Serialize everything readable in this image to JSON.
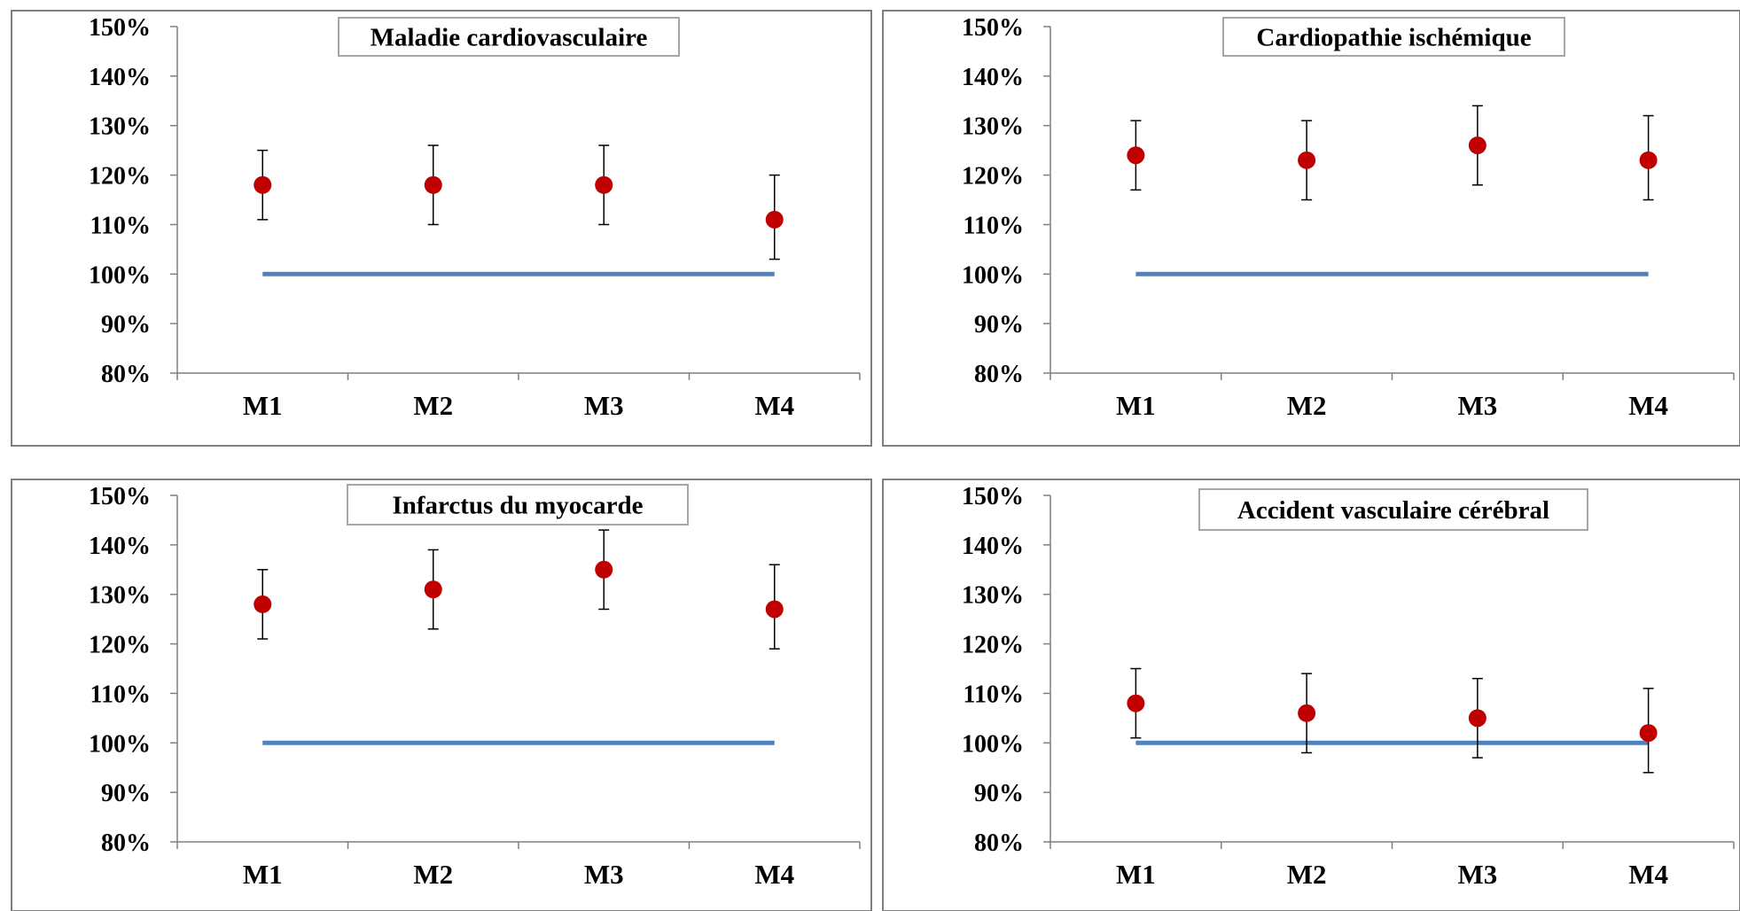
{
  "colors": {
    "point": "#c00000",
    "reference_line": "#4f81bd",
    "axis": "#7f7f7f",
    "frame": "#7f7f7f",
    "title_border": "#a6a6a6"
  },
  "chart_data": [
    {
      "type": "scatter",
      "title": "Maladie cardiovasculaire",
      "categories": [
        "M1",
        "M2",
        "M3",
        "M4"
      ],
      "values": [
        118,
        118,
        118,
        111
      ],
      "ci_low": [
        111,
        110,
        110,
        103
      ],
      "ci_high": [
        125,
        126,
        126,
        120
      ],
      "reference": 100,
      "ylim": [
        80,
        150
      ],
      "yticks": [
        "80%",
        "90%",
        "100%",
        "110%",
        "120%",
        "130%",
        "140%",
        "150%"
      ],
      "grid": false,
      "legend": "none"
    },
    {
      "type": "scatter",
      "title": "Cardiopathie  ischémique",
      "categories": [
        "M1",
        "M2",
        "M3",
        "M4"
      ],
      "values": [
        124,
        123,
        126,
        123
      ],
      "ci_low": [
        117,
        115,
        118,
        115
      ],
      "ci_high": [
        131,
        131,
        134,
        132
      ],
      "reference": 100,
      "ylim": [
        80,
        150
      ],
      "yticks": [
        "80%",
        "90%",
        "100%",
        "110%",
        "120%",
        "130%",
        "140%",
        "150%"
      ],
      "grid": false,
      "legend": "none"
    },
    {
      "type": "scatter",
      "title": "Infarctus du myocarde",
      "categories": [
        "M1",
        "M2",
        "M3",
        "M4"
      ],
      "values": [
        128,
        131,
        135,
        127
      ],
      "ci_low": [
        121,
        123,
        127,
        119
      ],
      "ci_high": [
        135,
        139,
        143,
        136
      ],
      "reference": 100,
      "ylim": [
        80,
        150
      ],
      "yticks": [
        "80%",
        "90%",
        "100%",
        "110%",
        "120%",
        "130%",
        "140%",
        "150%"
      ],
      "grid": false,
      "legend": "none"
    },
    {
      "type": "scatter",
      "title": "Accident vasculaire cérébral",
      "categories": [
        "M1",
        "M2",
        "M3",
        "M4"
      ],
      "values": [
        108,
        106,
        105,
        102
      ],
      "ci_low": [
        101,
        98,
        97,
        94
      ],
      "ci_high": [
        115,
        114,
        113,
        111
      ],
      "reference": 100,
      "ylim": [
        80,
        150
      ],
      "yticks": [
        "80%",
        "90%",
        "100%",
        "110%",
        "120%",
        "130%",
        "140%",
        "150%"
      ],
      "grid": false,
      "legend": "none"
    }
  ]
}
